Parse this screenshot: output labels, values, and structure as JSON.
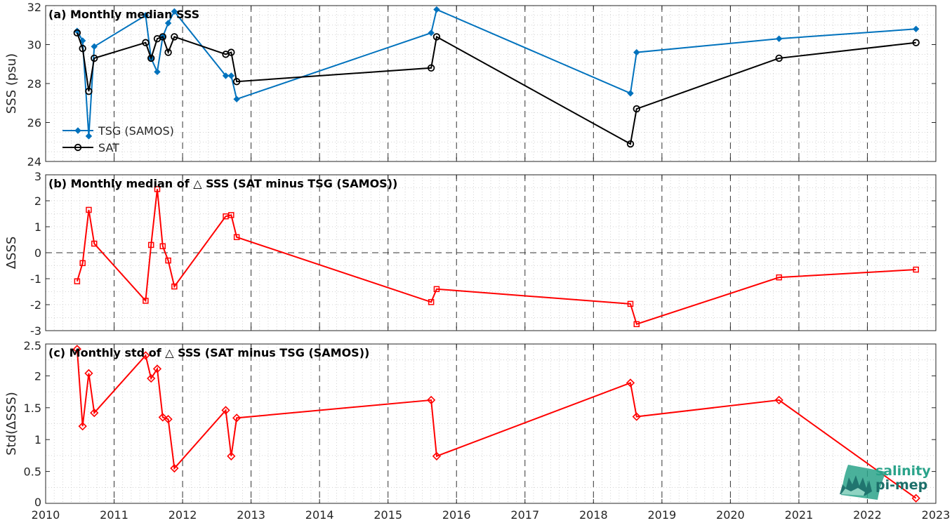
{
  "chart_data": [
    {
      "type": "line",
      "title": "(a) Monthly median SSS",
      "xlabel": "",
      "ylabel": "SSS (psu)",
      "xlim": [
        2010,
        2023
      ],
      "ylim": [
        24,
        32
      ],
      "yticks": [
        24,
        26,
        28,
        30,
        32
      ],
      "legend_position": "bottom-left",
      "grid": "major x dashed, minor dotted",
      "series": [
        {
          "name": "TSG (SAMOS)",
          "color": "#0072bd",
          "marker": "diamond",
          "x": [
            2010.46,
            2010.54,
            2010.63,
            2010.71,
            2011.46,
            2011.54,
            2011.63,
            2011.71,
            2011.79,
            2011.88,
            2012.63,
            2012.71,
            2012.79,
            2015.63,
            2015.71,
            2018.54,
            2018.63,
            2020.71,
            2022.71
          ],
          "values": [
            30.7,
            30.2,
            25.3,
            29.9,
            31.5,
            29.3,
            28.6,
            30.4,
            31.1,
            31.7,
            28.4,
            28.4,
            27.2,
            30.6,
            31.8,
            27.5,
            29.6,
            30.3,
            30.8
          ]
        },
        {
          "name": "SAT",
          "color": "#000000",
          "marker": "circle",
          "x": [
            2010.46,
            2010.54,
            2010.63,
            2010.71,
            2011.46,
            2011.54,
            2011.63,
            2011.71,
            2011.79,
            2011.88,
            2012.63,
            2012.71,
            2012.79,
            2015.63,
            2015.71,
            2018.54,
            2018.63,
            2020.71,
            2022.71
          ],
          "values": [
            30.6,
            29.8,
            27.6,
            29.3,
            30.1,
            29.3,
            30.3,
            30.4,
            29.6,
            30.4,
            29.5,
            29.6,
            28.1,
            28.8,
            30.4,
            24.9,
            26.7,
            29.3,
            30.1
          ]
        }
      ]
    },
    {
      "type": "line",
      "title": "(b) Monthly median of △ SSS (SAT minus TSG (SAMOS))",
      "xlabel": "",
      "ylabel": "ΔSSS",
      "xlim": [
        2010,
        2023
      ],
      "ylim": [
        -3,
        3
      ],
      "yticks": [
        -3,
        -2,
        -1,
        0,
        1,
        2,
        3
      ],
      "zero_line": true,
      "series": [
        {
          "color": "#ff0000",
          "marker": "square",
          "x": [
            2010.46,
            2010.54,
            2010.63,
            2010.71,
            2011.46,
            2011.54,
            2011.63,
            2011.71,
            2011.79,
            2011.88,
            2012.63,
            2012.71,
            2012.79,
            2015.63,
            2015.71,
            2018.54,
            2018.63,
            2020.71,
            2022.71
          ],
          "values": [
            -1.1,
            -0.4,
            1.65,
            0.35,
            -1.85,
            0.3,
            2.45,
            0.25,
            -0.3,
            -1.3,
            1.4,
            1.45,
            0.6,
            -1.9,
            -1.4,
            -1.97,
            -2.75,
            -0.95,
            -0.65
          ]
        }
      ]
    },
    {
      "type": "line",
      "title": "(c) Monthly std of △ SSS (SAT minus TSG (SAMOS))",
      "xlabel": "",
      "ylabel": "Std(ΔSSS)",
      "xlim": [
        2010,
        2023
      ],
      "ylim": [
        0,
        2.5
      ],
      "yticks": [
        0,
        0.5,
        1,
        1.5,
        2,
        2.5
      ],
      "xticks": [
        2010,
        2011,
        2012,
        2013,
        2014,
        2015,
        2016,
        2017,
        2018,
        2019,
        2020,
        2021,
        2022,
        2023
      ],
      "series": [
        {
          "color": "#ff0000",
          "marker": "diamond-open",
          "x": [
            2010.46,
            2010.54,
            2010.63,
            2010.71,
            2011.46,
            2011.54,
            2011.63,
            2011.71,
            2011.79,
            2011.88,
            2012.63,
            2012.71,
            2012.79,
            2015.63,
            2015.71,
            2018.54,
            2018.63,
            2020.71,
            2022.71
          ],
          "values": [
            2.42,
            1.21,
            2.04,
            1.42,
            2.32,
            1.96,
            2.11,
            1.35,
            1.32,
            0.55,
            1.46,
            0.74,
            1.34,
            1.62,
            0.74,
            1.89,
            1.36,
            1.62,
            0.08
          ]
        }
      ]
    }
  ],
  "logo": {
    "line1": "salinity",
    "line2": "pi-mep",
    "color1": "#2aa38a",
    "color2": "#1c6f6a"
  }
}
